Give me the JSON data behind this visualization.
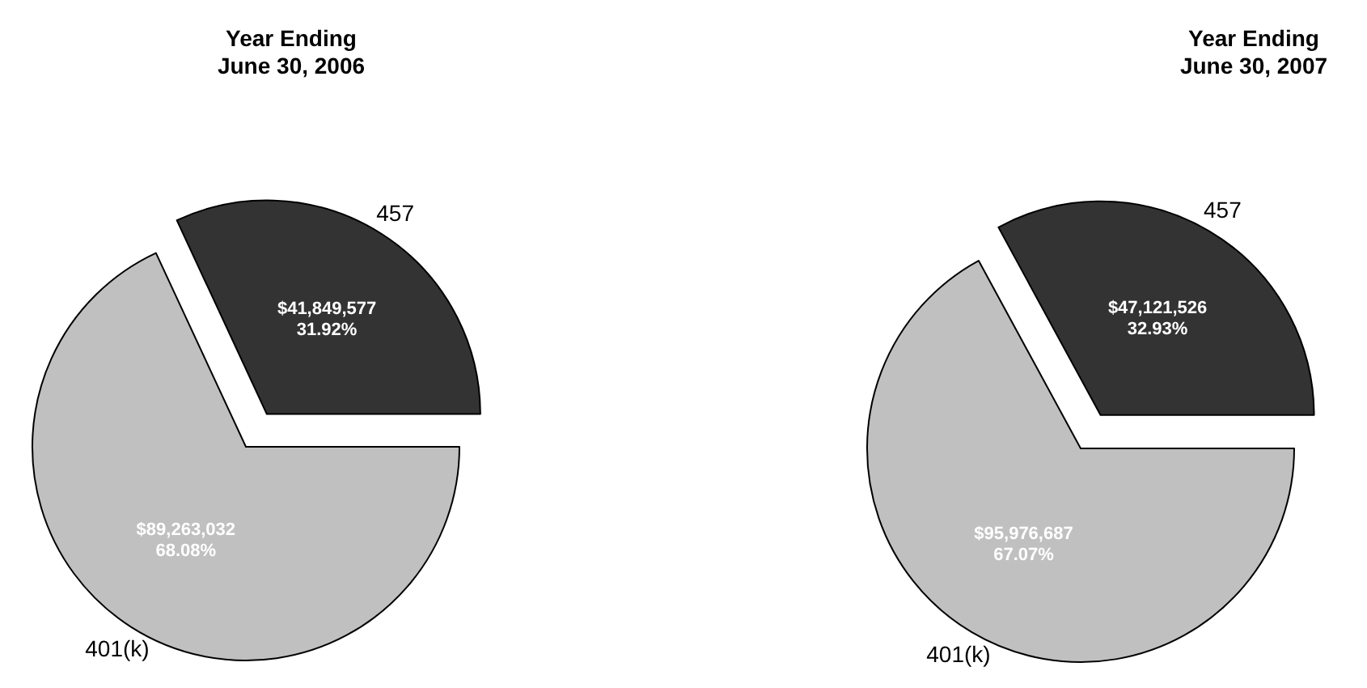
{
  "chart_data": [
    {
      "type": "pie",
      "title": "Year Ending\nJune 30, 2006",
      "categories": [
        "457",
        "401(k)"
      ],
      "values": [
        41849577,
        89263032
      ],
      "colors": [
        "#333333",
        "#c0c0c0"
      ],
      "value_labels": [
        "$41,849,577\n31.92%",
        "$89,263,032\n68.08%"
      ]
    },
    {
      "type": "pie",
      "title": "Year Ending\nJune 30, 2007",
      "categories": [
        "457",
        "401(k)"
      ],
      "values": [
        47121526,
        95976687
      ],
      "colors": [
        "#333333",
        "#c0c0c0"
      ],
      "value_labels": [
        "$47,121,526\n32.93%",
        "$95,976,687\n67.07%"
      ]
    }
  ]
}
